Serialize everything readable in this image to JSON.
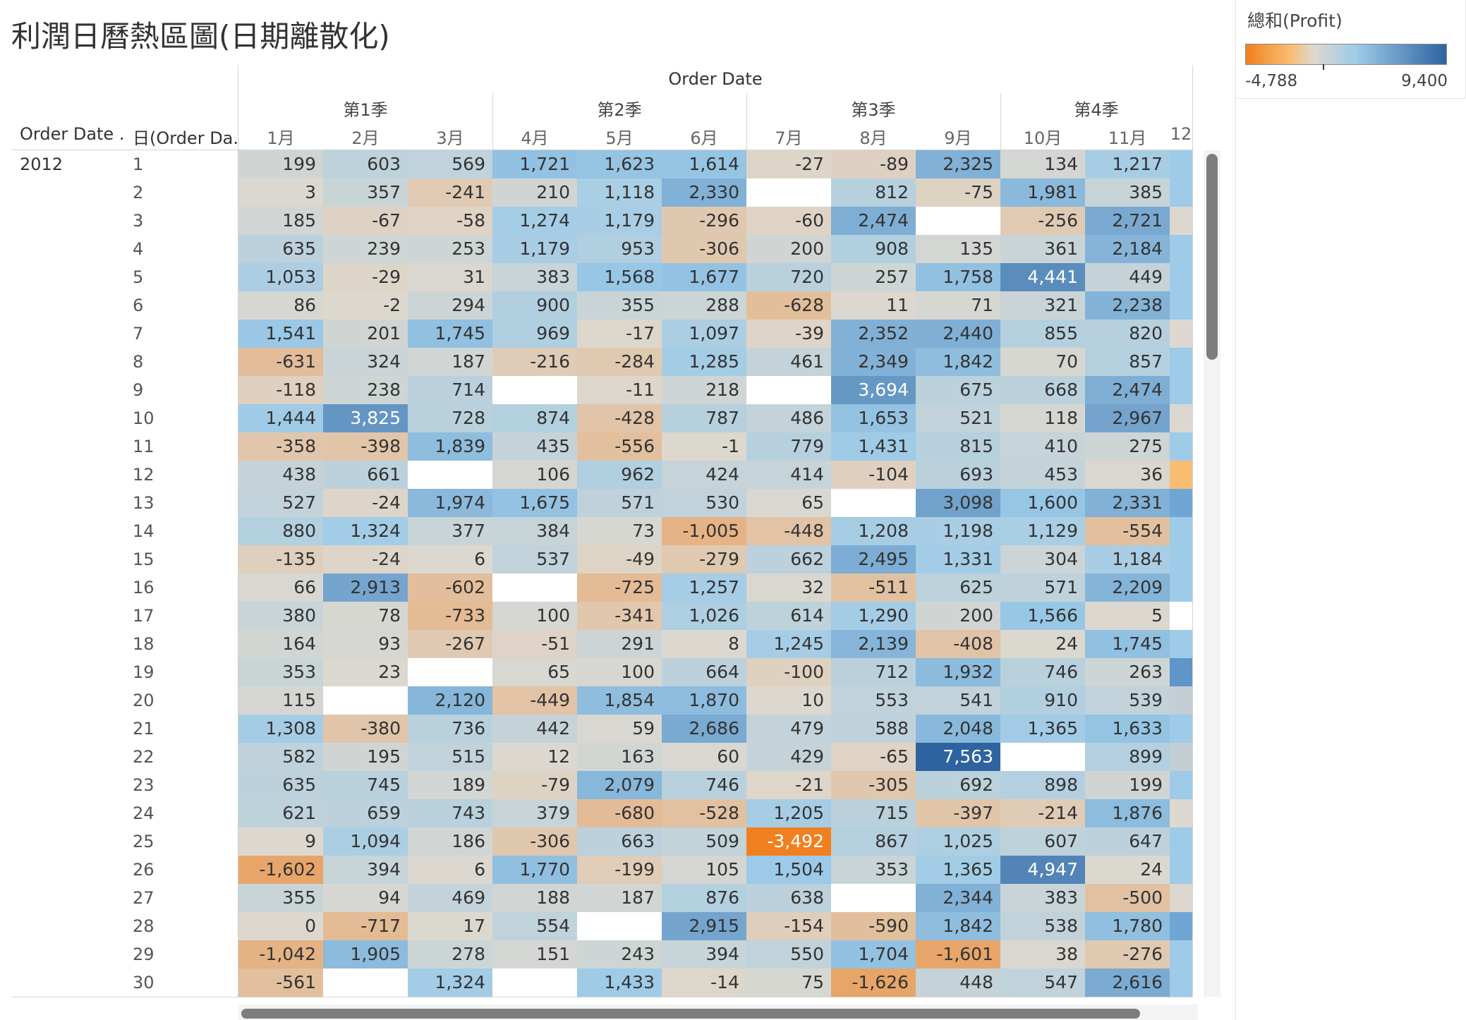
{
  "title": "利潤日曆熱區圖(日期離散化)",
  "legend": {
    "title": "總和(Profit)",
    "min_label": "-4,788",
    "max_label": "9,400",
    "min_value": -4788,
    "max_value": 9400,
    "colors": {
      "negative": "#f0801f",
      "neutral": "#ddd8cf",
      "low_positive": "#9dcbe8",
      "high_positive": "#2e63a0"
    }
  },
  "column_header": {
    "title": "Order Date",
    "quarters": [
      "第1季",
      "第2季",
      "第3季",
      "第4季"
    ],
    "months": [
      "1月",
      "2月",
      "3月",
      "4月",
      "5月",
      "6月",
      "7月",
      "8月",
      "9月",
      "10月",
      "11月",
      "12"
    ]
  },
  "row_header": {
    "year_title": "Order Date ..",
    "day_title": "日(Order Da..",
    "year": "2012",
    "days": [
      "1",
      "2",
      "3",
      "4",
      "5",
      "6",
      "7",
      "8",
      "9",
      "10",
      "11",
      "12",
      "13",
      "14",
      "15",
      "16",
      "17",
      "18",
      "19",
      "20",
      "21",
      "22",
      "23",
      "24",
      "25",
      "26",
      "27",
      "28",
      "29",
      "30"
    ]
  },
  "chart_data": {
    "type": "heatmap",
    "title": "利潤日曆熱區圖(日期離散化)",
    "x_label": "Order Date",
    "y_label": "日(Order Date)",
    "months": [
      "1月",
      "2月",
      "3月",
      "4月",
      "5月",
      "6月",
      "7月",
      "8月",
      "9月",
      "10月",
      "11月",
      "12"
    ],
    "values": [
      [
        "199",
        "603",
        "569",
        "1,721",
        "1,623",
        "1,614",
        "-27",
        "-89",
        "2,325",
        "134",
        "1,217",
        ""
      ],
      [
        "3",
        "357",
        "-241",
        "210",
        "1,118",
        "2,330",
        "",
        "812",
        "-75",
        "1,981",
        "385",
        ""
      ],
      [
        "185",
        "-67",
        "-58",
        "1,274",
        "1,179",
        "-296",
        "-60",
        "2,474",
        "",
        "-256",
        "2,721",
        ""
      ],
      [
        "635",
        "239",
        "253",
        "1,179",
        "953",
        "-306",
        "200",
        "908",
        "135",
        "361",
        "2,184",
        ""
      ],
      [
        "1,053",
        "-29",
        "31",
        "383",
        "1,568",
        "1,677",
        "720",
        "257",
        "1,758",
        "4,441",
        "449",
        ""
      ],
      [
        "86",
        "-2",
        "294",
        "900",
        "355",
        "288",
        "-628",
        "11",
        "71",
        "321",
        "2,238",
        ""
      ],
      [
        "1,541",
        "201",
        "1,745",
        "969",
        "-17",
        "1,097",
        "-39",
        "2,352",
        "2,440",
        "855",
        "820",
        ""
      ],
      [
        "-631",
        "324",
        "187",
        "-216",
        "-284",
        "1,285",
        "461",
        "2,349",
        "1,842",
        "70",
        "857",
        ""
      ],
      [
        "-118",
        "238",
        "714",
        "",
        "-11",
        "218",
        "",
        "3,694",
        "675",
        "668",
        "2,474",
        ""
      ],
      [
        "1,444",
        "3,825",
        "728",
        "874",
        "-428",
        "787",
        "486",
        "1,653",
        "521",
        "118",
        "2,967",
        ""
      ],
      [
        "-358",
        "-398",
        "1,839",
        "435",
        "-556",
        "-1",
        "779",
        "1,431",
        "815",
        "410",
        "275",
        ""
      ],
      [
        "438",
        "661",
        "",
        "106",
        "962",
        "424",
        "414",
        "-104",
        "693",
        "453",
        "36",
        ""
      ],
      [
        "527",
        "-24",
        "1,974",
        "1,675",
        "571",
        "530",
        "65",
        "",
        "3,098",
        "1,600",
        "2,331",
        ""
      ],
      [
        "880",
        "1,324",
        "377",
        "384",
        "73",
        "-1,005",
        "-448",
        "1,208",
        "1,198",
        "1,129",
        "-554",
        ""
      ],
      [
        "-135",
        "-24",
        "6",
        "537",
        "-49",
        "-279",
        "662",
        "2,495",
        "1,331",
        "304",
        "1,184",
        ""
      ],
      [
        "66",
        "2,913",
        "-602",
        "",
        "-725",
        "1,257",
        "32",
        "-511",
        "625",
        "571",
        "2,209",
        ""
      ],
      [
        "380",
        "78",
        "-733",
        "100",
        "-341",
        "1,026",
        "614",
        "1,290",
        "200",
        "1,566",
        "5",
        ""
      ],
      [
        "164",
        "93",
        "-267",
        "-51",
        "291",
        "8",
        "1,245",
        "2,139",
        "-408",
        "24",
        "1,745",
        ""
      ],
      [
        "353",
        "23",
        "",
        "65",
        "100",
        "664",
        "-100",
        "712",
        "1,932",
        "746",
        "263",
        ""
      ],
      [
        "115",
        "",
        "2,120",
        "-449",
        "1,854",
        "1,870",
        "10",
        "553",
        "541",
        "910",
        "539",
        ""
      ],
      [
        "1,308",
        "-380",
        "736",
        "442",
        "59",
        "2,686",
        "479",
        "588",
        "2,048",
        "1,365",
        "1,633",
        ""
      ],
      [
        "582",
        "195",
        "515",
        "12",
        "163",
        "60",
        "429",
        "-65",
        "7,563",
        "",
        "899",
        ""
      ],
      [
        "635",
        "745",
        "189",
        "-79",
        "2,079",
        "746",
        "-21",
        "-305",
        "692",
        "898",
        "199",
        ""
      ],
      [
        "621",
        "659",
        "743",
        "379",
        "-680",
        "-528",
        "1,205",
        "715",
        "-397",
        "-214",
        "1,876",
        ""
      ],
      [
        "9",
        "1,094",
        "186",
        "-306",
        "663",
        "509",
        "-3,492",
        "867",
        "1,025",
        "607",
        "647",
        ""
      ],
      [
        "-1,602",
        "394",
        "6",
        "1,770",
        "-199",
        "105",
        "1,504",
        "353",
        "1,365",
        "4,947",
        "24",
        ""
      ],
      [
        "355",
        "94",
        "469",
        "188",
        "187",
        "876",
        "638",
        "",
        "2,344",
        "383",
        "-500",
        ""
      ],
      [
        "0",
        "-717",
        "17",
        "554",
        "",
        "2,915",
        "-154",
        "-590",
        "1,842",
        "538",
        "1,780",
        ""
      ],
      [
        "-1,042",
        "1,905",
        "278",
        "151",
        "243",
        "394",
        "550",
        "1,704",
        "-1,601",
        "38",
        "-276",
        ""
      ],
      [
        "-561",
        "",
        "1,324",
        "",
        "1,433",
        "-14",
        "75",
        "-1,626",
        "448",
        "547",
        "2,616",
        ""
      ]
    ],
    "dec_column_colors": [
      "#9dcbe8",
      "#9dcbe8",
      "#ddd8cf",
      "#9dcbe8",
      "#9dcbe8",
      "#9dcbe8",
      "#ddd8cf",
      "#9dcbe8",
      "#9dcbe8",
      "#ddd8cf",
      "#9dcbe8",
      "#f9bd72",
      "#6fa6d4",
      "#9dcbe8",
      "#9dcbe8",
      "#9dcbe8",
      "#ffffff",
      "#9dcbe8",
      "#5f95c9",
      "#c3cfd4",
      "#9dcbe8",
      "#c3cfd4",
      "#9dcbe8",
      "#ddd8cf",
      "#9dcbe8",
      "#9dcbe8",
      "#ddd8cf",
      "#6fa6d4",
      "#9dcbe8",
      "#9dcbe8"
    ]
  }
}
